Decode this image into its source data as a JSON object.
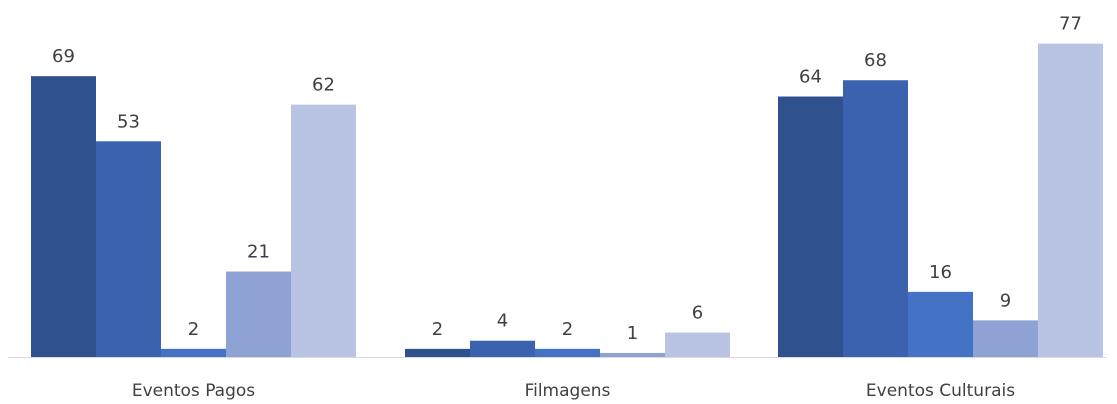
{
  "chart_data": {
    "type": "bar",
    "categories": [
      "Eventos Pagos",
      "Filmagens",
      "Eventos Culturais"
    ],
    "series": [
      {
        "values": [
          69,
          2,
          64
        ],
        "color": "#2F528F"
      },
      {
        "values": [
          53,
          4,
          68
        ],
        "color": "#3A62AE"
      },
      {
        "values": [
          2,
          2,
          16
        ],
        "color": "#4472C4"
      },
      {
        "values": [
          21,
          1,
          9
        ],
        "color": "#8FA2D4"
      },
      {
        "values": [
          62,
          6,
          77
        ],
        "color": "#B9C4E4"
      }
    ],
    "title": "",
    "xlabel": "",
    "ylabel": "",
    "ylim": [
      0,
      80
    ],
    "grid": false,
    "legend": "none",
    "data_labels": true,
    "axis_color": "#D9D9D9"
  }
}
